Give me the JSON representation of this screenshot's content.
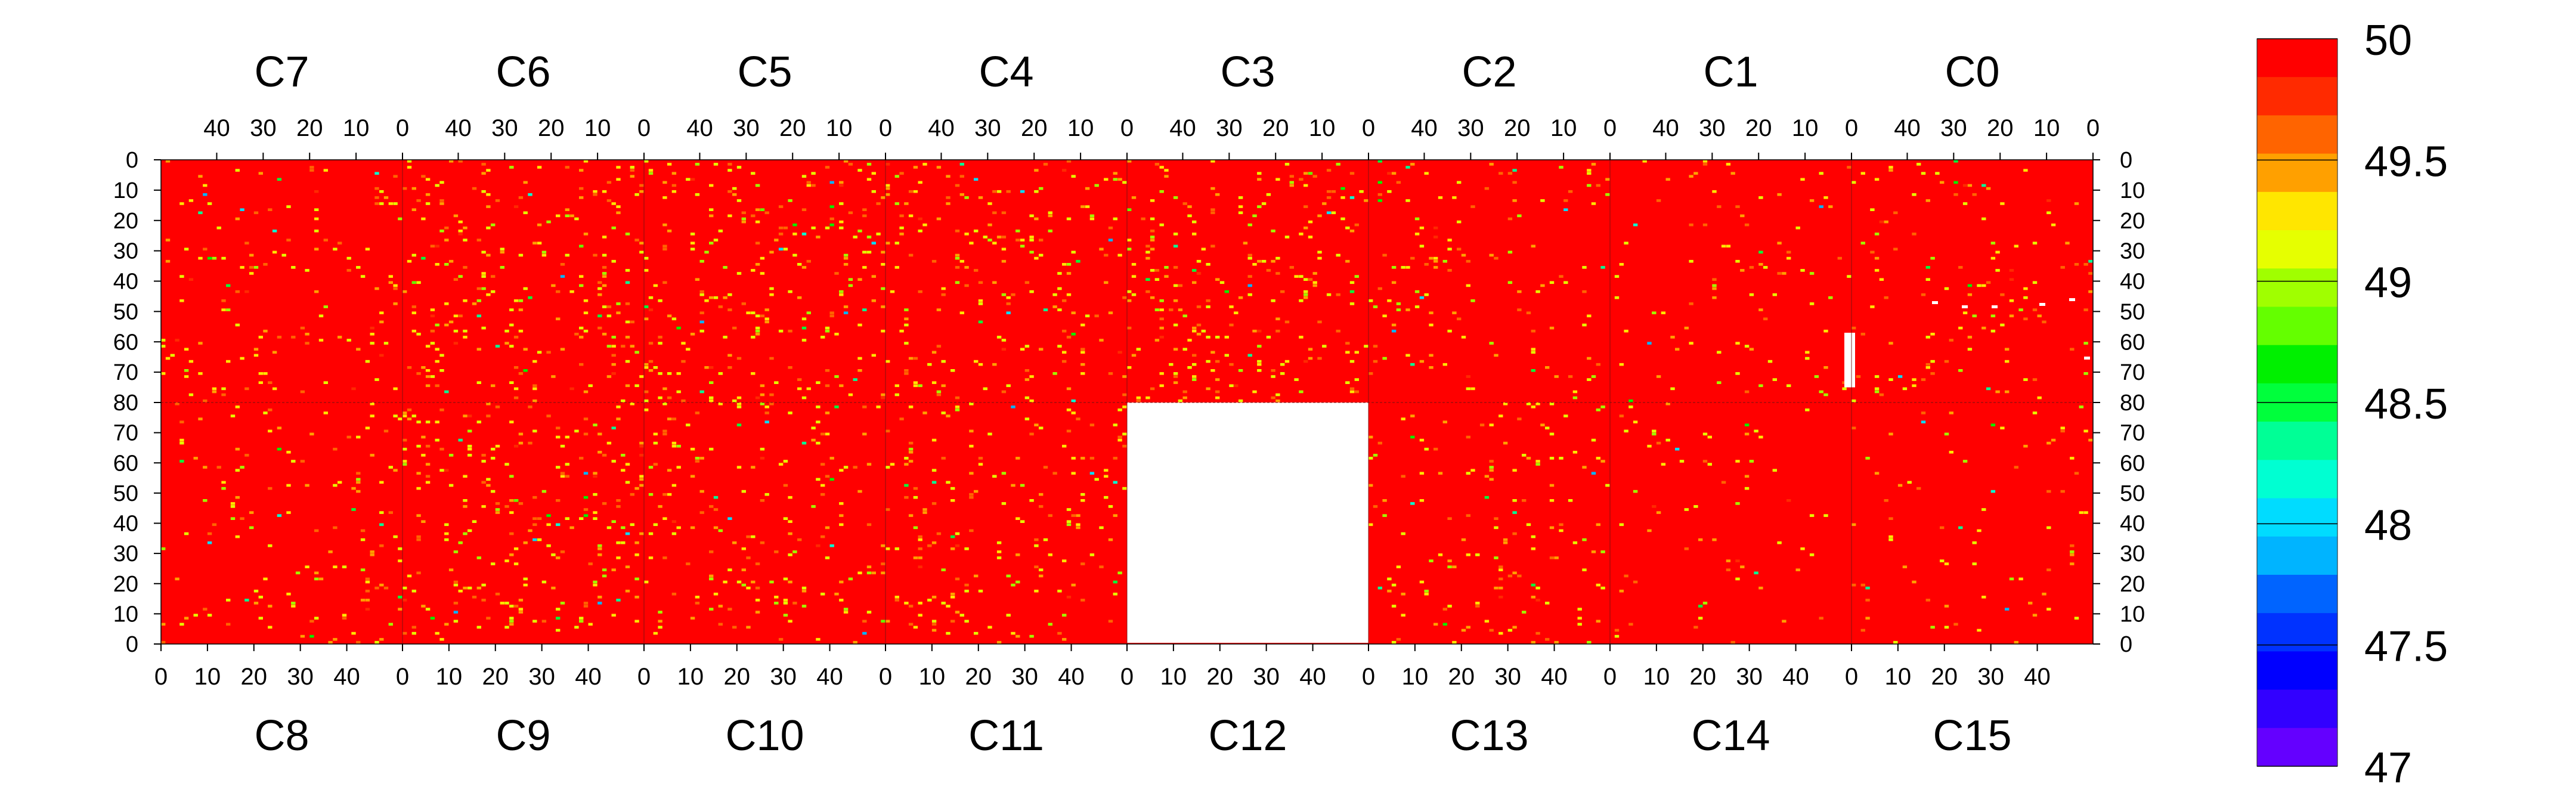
{
  "chart_data": {
    "type": "heatmap",
    "title": "",
    "chips_top": [
      "C7",
      "C6",
      "C5",
      "C4",
      "C3",
      "C2",
      "C1",
      "C0"
    ],
    "chips_bottom": [
      "C8",
      "C9",
      "C10",
      "C11",
      "C12",
      "C13",
      "C14",
      "C15"
    ],
    "chip_columns": 52,
    "rows_per_half": 80,
    "x_ticks_top": [
      "40",
      "30",
      "20",
      "10",
      "0"
    ],
    "x_ticks_bottom": [
      "0",
      "10",
      "20",
      "30",
      "40"
    ],
    "y_ticks_upper": [
      "0",
      "10",
      "20",
      "30",
      "40",
      "50",
      "60",
      "70",
      "80"
    ],
    "y_ticks_lower": [
      "70",
      "60",
      "50",
      "40",
      "30",
      "20",
      "10",
      "0"
    ],
    "zlim": [
      47,
      50
    ],
    "background_value": 50,
    "colorbar_labels": [
      "50",
      "49.5",
      "49",
      "48.5",
      "48",
      "47.5",
      "47"
    ],
    "colorbar_colors": [
      "#ff0000",
      "#ff2a00",
      "#ff6400",
      "#ffa000",
      "#ffe600",
      "#e6ff00",
      "#a0ff00",
      "#64ff00",
      "#00f000",
      "#00ff3c",
      "#00ff96",
      "#00ffd2",
      "#00dcff",
      "#00b4ff",
      "#0064ff",
      "#0032ff",
      "#0000ff",
      "#3200ff",
      "#6400ff"
    ],
    "missing_regions": [
      {
        "chip": "C12",
        "note": "no data"
      },
      {
        "chip": "C0",
        "columns": [
          0,
          1
        ],
        "rows_from_top": [
          57,
          75
        ]
      }
    ],
    "cell_value_ranges": {
      "typical_deviation": [
        49.0,
        49.7
      ],
      "rare_low": [
        47.8,
        48.8
      ]
    },
    "density_per_chip": {
      "C7": 0.03,
      "C6": 0.05,
      "C5": 0.05,
      "C4": 0.05,
      "C3": 0.05,
      "C2": 0.03,
      "C1": 0.02,
      "C0": 0.025,
      "C8": 0.03,
      "C9": 0.05,
      "C10": 0.045,
      "C11": 0.035,
      "C12": 0,
      "C13": 0.03,
      "C14": 0.015,
      "C15": 0.02
    },
    "grid": false
  }
}
